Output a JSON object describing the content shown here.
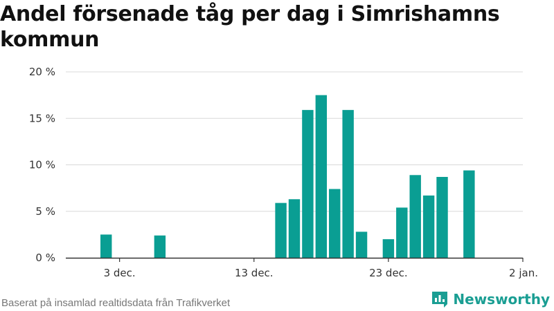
{
  "header": {
    "title": "Andel försenade tåg per dag i Simrishamns kommun"
  },
  "footer": {
    "source": "Baserat på insamlad realtidsdata från Trafikverket",
    "brand": "Newsworthy"
  },
  "colors": {
    "bar": "#0a9e93",
    "grid": "#d9d9d9",
    "axis": "#333333",
    "brand": "#1a9e93"
  },
  "icons": {
    "brand_logo": "newsworthy-logo-icon"
  },
  "chart_data": {
    "type": "bar",
    "title": "Andel försenade tåg per dag i Simrishamns kommun",
    "xlabel": "",
    "ylabel": "",
    "x_tick_labels": [
      "3 dec.",
      "13 dec.",
      "23 dec.",
      "2 jan."
    ],
    "x_tick_dates": [
      "2019-12-03",
      "2019-12-13",
      "2019-12-23",
      "2020-01-02"
    ],
    "x_range": [
      "2019-11-29",
      "2020-01-02"
    ],
    "y_tick_labels": [
      "0 %",
      "5 %",
      "10 %",
      "15 %",
      "20 %"
    ],
    "y_ticks": [
      0,
      5,
      10,
      15,
      20
    ],
    "ylim": [
      0,
      20
    ],
    "grid": true,
    "legend": "none",
    "series": [
      {
        "unit": "%",
        "points": [
          {
            "date": "2019-12-02",
            "value": 2.5
          },
          {
            "date": "2019-12-06",
            "value": 2.4
          },
          {
            "date": "2019-12-15",
            "value": 5.9
          },
          {
            "date": "2019-12-16",
            "value": 6.3
          },
          {
            "date": "2019-12-17",
            "value": 15.9
          },
          {
            "date": "2019-12-18",
            "value": 17.5
          },
          {
            "date": "2019-12-19",
            "value": 7.4
          },
          {
            "date": "2019-12-20",
            "value": 15.9
          },
          {
            "date": "2019-12-21",
            "value": 2.8
          },
          {
            "date": "2019-12-23",
            "value": 2.0
          },
          {
            "date": "2019-12-24",
            "value": 5.4
          },
          {
            "date": "2019-12-25",
            "value": 8.9
          },
          {
            "date": "2019-12-26",
            "value": 6.7
          },
          {
            "date": "2019-12-27",
            "value": 8.7
          },
          {
            "date": "2019-12-29",
            "value": 9.4
          }
        ]
      }
    ]
  }
}
